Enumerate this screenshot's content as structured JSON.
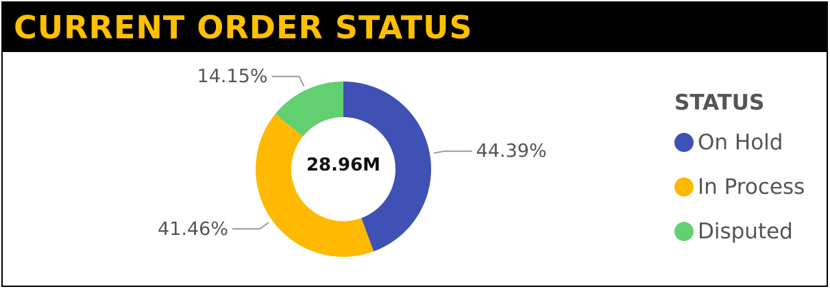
{
  "header": {
    "title": "CURRENT ORDER STATUS",
    "title_color": "#FFC000",
    "background": "#000000"
  },
  "chart_data": {
    "type": "pie",
    "variant": "donut",
    "center_label": "28.96M",
    "legend_title": "STATUS",
    "legend_placement": "right",
    "categories": [
      "On Hold",
      "In Process",
      "Disputed"
    ],
    "values": [
      44.39,
      41.46,
      14.15
    ],
    "data_labels": [
      "44.39%",
      "41.46%",
      "14.15%"
    ],
    "colors": [
      "#3F51B5",
      "#FFB900",
      "#62D070"
    ]
  }
}
